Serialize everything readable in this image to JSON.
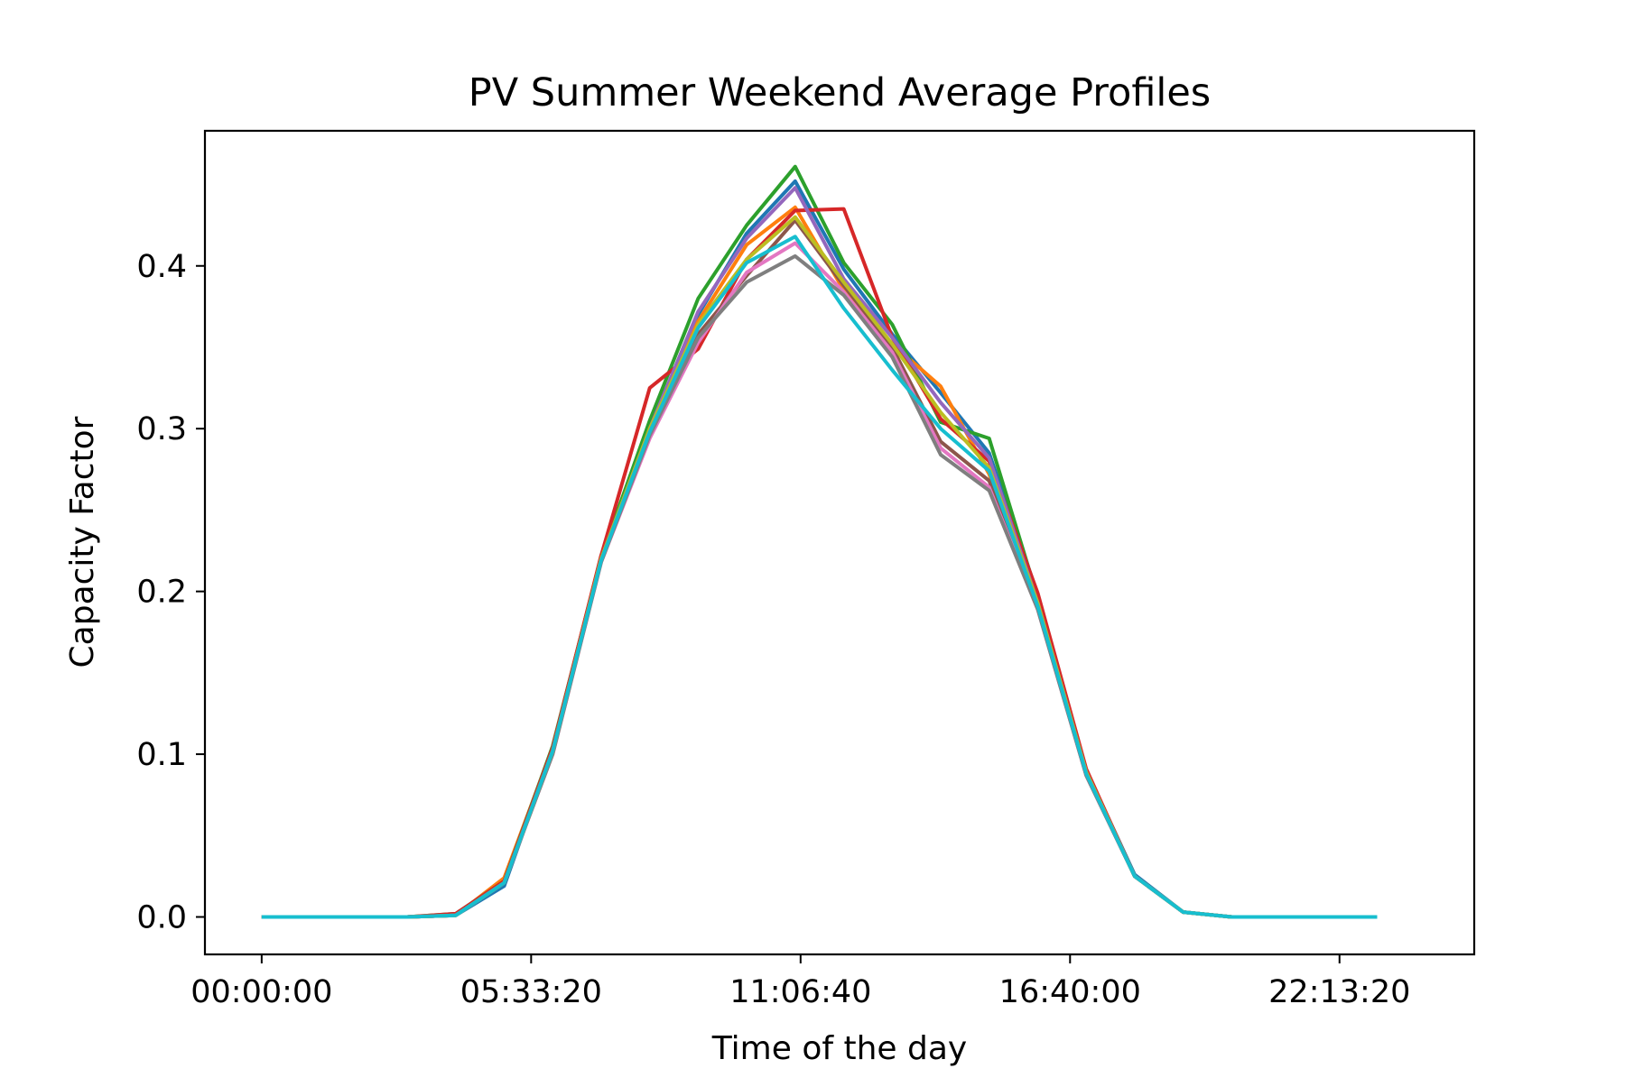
{
  "chart_data": {
    "type": "line",
    "title": "PV Summer Weekend Average Profiles",
    "xlabel": "Time of the day",
    "ylabel": "Capacity Factor",
    "x_tick_labels": [
      "00:00:00",
      "05:33:20",
      "11:06:40",
      "16:40:00",
      "22:13:20"
    ],
    "x_ticks_hours": [
      0,
      5.5556,
      11.1111,
      16.6667,
      22.2222
    ],
    "y_tick_labels": [
      "0.0",
      "0.1",
      "0.2",
      "0.3",
      "0.4"
    ],
    "y_ticks": [
      0.0,
      0.1,
      0.2,
      0.3,
      0.4
    ],
    "xlim_hours": [
      -1.17,
      25.0
    ],
    "ylim": [
      -0.023,
      0.483
    ],
    "grid": false,
    "legend": "none",
    "x_hours": [
      0,
      1,
      2,
      3,
      4,
      5,
      6,
      7,
      8,
      9,
      10,
      11,
      12,
      13,
      14,
      15,
      16,
      17,
      18,
      19,
      20,
      21,
      22,
      23
    ],
    "series": [
      {
        "color": "#1f77b4",
        "values": [
          0,
          0,
          0,
          0,
          0.001,
          0.019,
          0.103,
          0.222,
          0.301,
          0.37,
          0.42,
          0.452,
          0.398,
          0.358,
          0.322,
          0.285,
          0.198,
          0.09,
          0.026,
          0.003,
          0,
          0,
          0,
          0
        ]
      },
      {
        "color": "#ff7f0e",
        "values": [
          0,
          0,
          0,
          0,
          0.001,
          0.024,
          0.104,
          0.222,
          0.302,
          0.366,
          0.413,
          0.436,
          0.385,
          0.352,
          0.326,
          0.272,
          0.192,
          0.09,
          0.025,
          0.003,
          0,
          0,
          0,
          0
        ]
      },
      {
        "color": "#2ca02c",
        "values": [
          0,
          0,
          0,
          0,
          0.002,
          0.022,
          0.105,
          0.221,
          0.305,
          0.38,
          0.425,
          0.461,
          0.402,
          0.364,
          0.304,
          0.294,
          0.196,
          0.088,
          0.025,
          0.003,
          0,
          0,
          0,
          0
        ]
      },
      {
        "color": "#d62728",
        "values": [
          0,
          0,
          0,
          0,
          0.002,
          0.022,
          0.104,
          0.222,
          0.325,
          0.349,
          0.404,
          0.434,
          0.435,
          0.356,
          0.306,
          0.28,
          0.199,
          0.091,
          0.025,
          0.003,
          0,
          0,
          0,
          0
        ]
      },
      {
        "color": "#9467bd",
        "values": [
          0,
          0,
          0,
          0,
          0.001,
          0.021,
          0.102,
          0.22,
          0.3,
          0.372,
          0.417,
          0.448,
          0.392,
          0.356,
          0.316,
          0.282,
          0.193,
          0.089,
          0.025,
          0.003,
          0,
          0,
          0,
          0
        ]
      },
      {
        "color": "#8c564b",
        "values": [
          0,
          0,
          0,
          0,
          0.001,
          0.021,
          0.101,
          0.219,
          0.298,
          0.358,
          0.394,
          0.428,
          0.388,
          0.35,
          0.292,
          0.268,
          0.19,
          0.087,
          0.025,
          0.003,
          0,
          0,
          0,
          0
        ]
      },
      {
        "color": "#e377c2",
        "values": [
          0,
          0,
          0,
          0,
          0.001,
          0.021,
          0.1,
          0.218,
          0.294,
          0.353,
          0.396,
          0.414,
          0.384,
          0.347,
          0.288,
          0.264,
          0.189,
          0.087,
          0.025,
          0.003,
          0,
          0,
          0,
          0
        ]
      },
      {
        "color": "#7f7f7f",
        "values": [
          0,
          0,
          0,
          0,
          0.001,
          0.021,
          0.1,
          0.218,
          0.296,
          0.356,
          0.39,
          0.406,
          0.382,
          0.344,
          0.284,
          0.262,
          0.189,
          0.087,
          0.025,
          0.003,
          0,
          0,
          0,
          0
        ]
      },
      {
        "color": "#bcbd22",
        "values": [
          0,
          0,
          0,
          0,
          0.001,
          0.021,
          0.102,
          0.22,
          0.3,
          0.364,
          0.404,
          0.43,
          0.39,
          0.352,
          0.31,
          0.276,
          0.193,
          0.089,
          0.025,
          0.003,
          0,
          0,
          0,
          0
        ]
      },
      {
        "color": "#17becf",
        "values": [
          0,
          0,
          0,
          0,
          0.001,
          0.021,
          0.102,
          0.219,
          0.298,
          0.362,
          0.402,
          0.418,
          0.374,
          0.336,
          0.3,
          0.274,
          0.191,
          0.088,
          0.025,
          0.003,
          0,
          0,
          0,
          0
        ]
      }
    ]
  }
}
